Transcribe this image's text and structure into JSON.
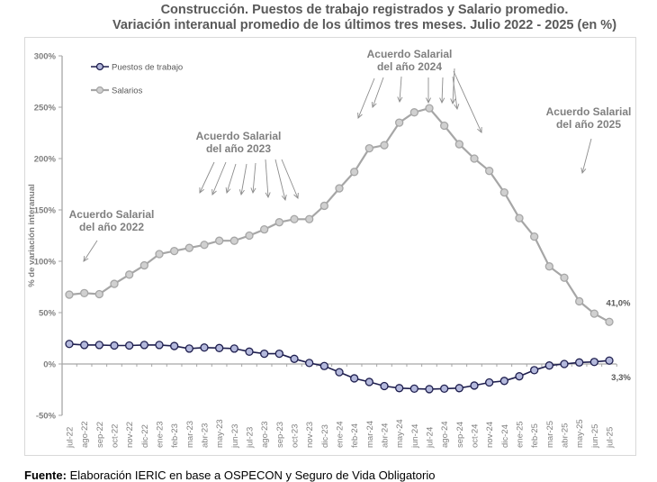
{
  "title_line1": "Construcción. Puestos de trabajo registrados y Salario promedio.",
  "title_line2": "Variación interanual promedio de los últimos tres meses. Julio 2022 - 2025 (en %)",
  "source_label": "Fuente:",
  "source_text": " Elaboración IERIC en base a OSPECON y Seguro de Vida Obligatorio",
  "chart_data": {
    "type": "line",
    "title": "Construcción. Puestos de trabajo registrados y Salario promedio. Variación interanual promedio de los últimos tres meses. Julio 2022 - 2025 (en %)",
    "xlabel": "",
    "ylabel": "% de variación interanual",
    "ylim": [
      -50,
      300
    ],
    "yticks": [
      -50,
      0,
      50,
      100,
      150,
      200,
      250,
      300
    ],
    "ytick_labels": [
      "-50%",
      "0%",
      "50%",
      "100%",
      "150%",
      "200%",
      "250%",
      "300%"
    ],
    "grid": false,
    "legend_position": "top-left",
    "categories": [
      "jul-22",
      "ago-22",
      "sep-22",
      "oct-22",
      "nov-22",
      "dic-22",
      "ene-23",
      "feb-23",
      "mar-23",
      "abr-23",
      "may-23",
      "jun-23",
      "jul-23",
      "ago-23",
      "sep-23",
      "oct-23",
      "nov-23",
      "dic-23",
      "ene-24",
      "feb-24",
      "mar-24",
      "abr-24",
      "may-24",
      "jun-24",
      "jul-24",
      "ago-24",
      "sep-24",
      "oct-24",
      "nov-24",
      "dic-24",
      "ene-25",
      "feb-25",
      "mar-25",
      "abr-25",
      "may-25",
      "jun-25",
      "jul-25"
    ],
    "series": [
      {
        "name": "Puestos de trabajo",
        "color": "#1f1f4f",
        "marker_fill": "#b4b9dc",
        "values": [
          19.5,
          18.5,
          18.5,
          18,
          18,
          18.5,
          18.5,
          17.5,
          15,
          16,
          15.5,
          15,
          12,
          10,
          10,
          5,
          1,
          -2,
          -8,
          -14,
          -17.5,
          -21.5,
          -23.5,
          -24,
          -24.5,
          -24,
          -23.5,
          -21,
          -18,
          -16.5,
          -12,
          -6,
          -1.5,
          0,
          1.5,
          2,
          3.3
        ],
        "end_label": "3,3%"
      },
      {
        "name": "Salarios",
        "color": "#a6a6a6",
        "marker_fill": "#d0d0d0",
        "values": [
          67.5,
          69,
          68,
          78,
          87,
          96,
          107,
          110,
          113,
          116,
          120,
          120,
          125,
          131,
          138,
          141,
          141,
          154,
          171,
          187,
          210,
          213,
          235,
          245,
          249,
          232,
          214,
          200,
          188,
          167,
          142,
          124,
          95,
          84,
          61,
          49,
          41.0
        ],
        "end_label": "41,0%"
      }
    ],
    "annotations": [
      {
        "line1": "Acuerdo Salarial",
        "line2": "del año 2022",
        "arrow_count": 1
      },
      {
        "line1": "Acuerdo Salarial",
        "line2": "del año 2023",
        "arrow_count": 8
      },
      {
        "line1": "Acuerdo Salarial",
        "line2": "del año 2024",
        "arrow_count": 8
      },
      {
        "line1": "Acuerdo Salarial",
        "line2": "del año 2025",
        "arrow_count": 1
      }
    ]
  }
}
